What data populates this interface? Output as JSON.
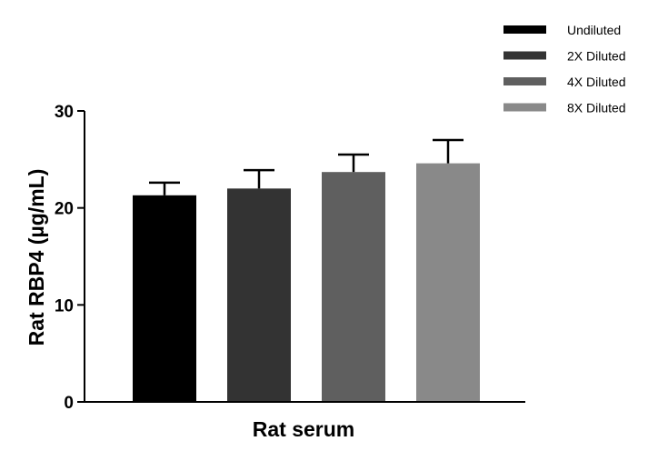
{
  "chart_data": {
    "type": "bar",
    "title": "",
    "xlabel": "Rat serum",
    "ylabel": "Rat RBP4 (µg/mL)",
    "ylim": [
      0,
      30
    ],
    "yticks": [
      0,
      10,
      20,
      30
    ],
    "grid": false,
    "legend_position": "top-right",
    "series": [
      {
        "name": "Undiluted",
        "value": 21.3,
        "error": 1.3,
        "color": "#000000"
      },
      {
        "name": "2X Diluted",
        "value": 22.0,
        "error": 1.9,
        "color": "#333333"
      },
      {
        "name": "4X Diluted",
        "value": 23.7,
        "error": 1.8,
        "color": "#5f5f5f"
      },
      {
        "name": "8X Diluted",
        "value": 24.6,
        "error": 2.4,
        "color": "#898989"
      }
    ]
  }
}
